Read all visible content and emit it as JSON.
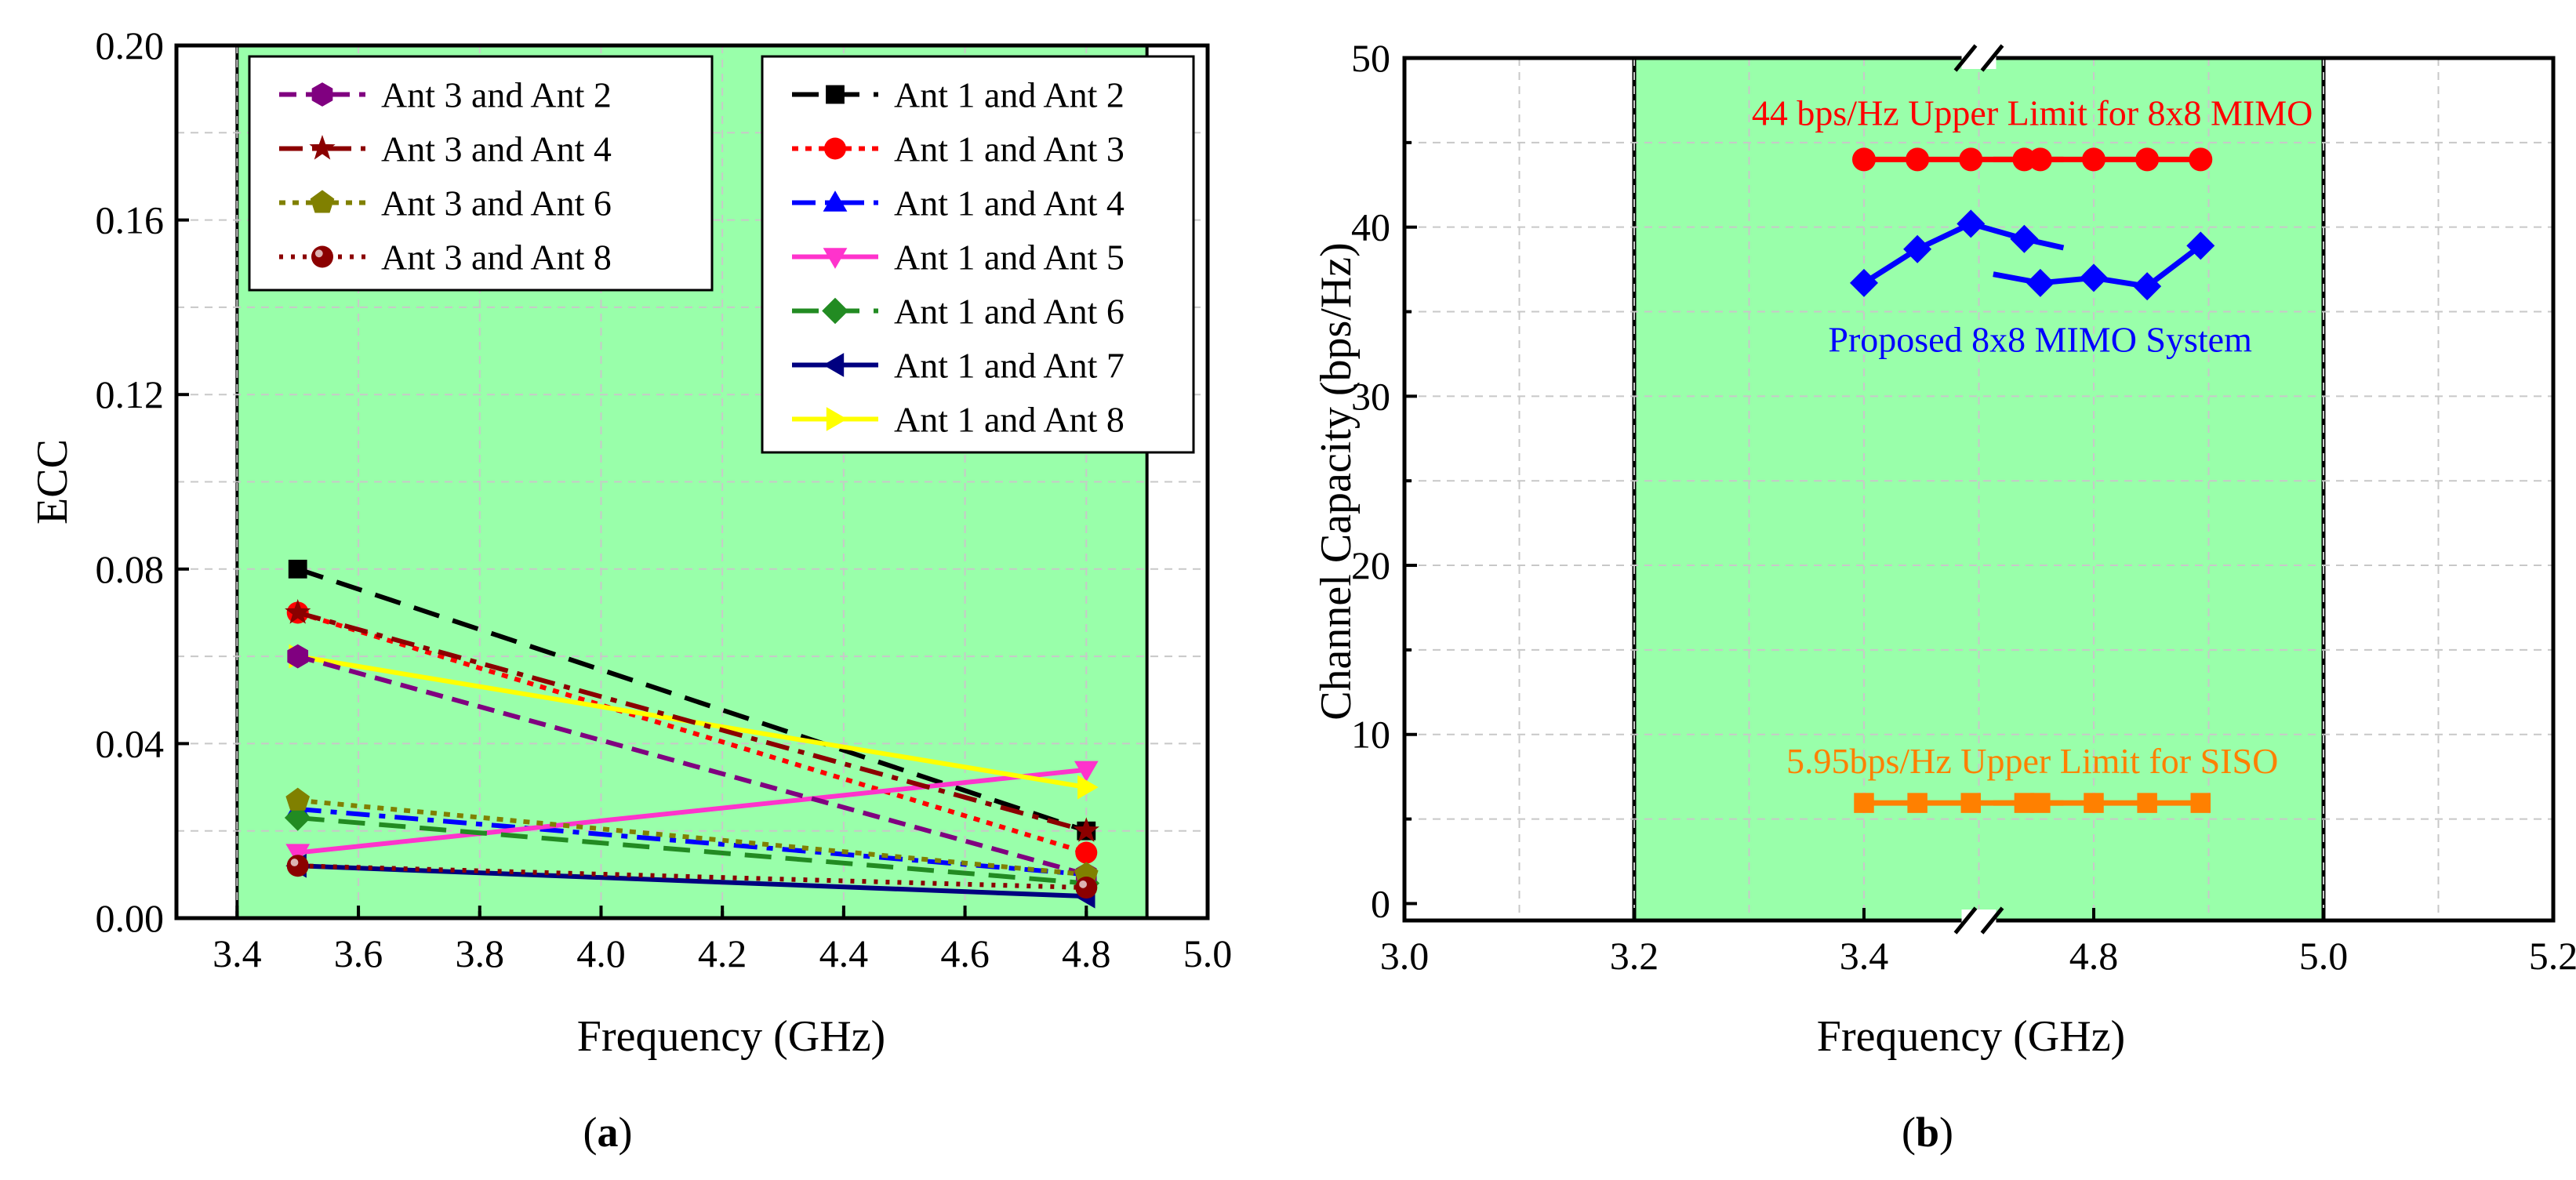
{
  "colors": {
    "band": "#99ffaa",
    "legend_bg": "#ffffff"
  },
  "chart_data": [
    {
      "type": "line",
      "caption": "(a)",
      "caption_letter": "a",
      "title": "",
      "xlabel": "Frequency (GHz)",
      "ylabel": "ECC",
      "xlim": [
        3.3,
        5.0
      ],
      "ylim": [
        0.0,
        0.2
      ],
      "x_ticks": [
        3.4,
        3.6,
        3.8,
        4.0,
        4.2,
        4.4,
        4.6,
        4.8,
        5.0
      ],
      "x_tick_labels": [
        "3.4",
        "3.6",
        "3.8",
        "4.0",
        "4.2",
        "4.4",
        "4.6",
        "4.8",
        "5.0"
      ],
      "y_ticks": [
        0.0,
        0.04,
        0.08,
        0.12,
        0.16,
        0.2
      ],
      "y_tick_labels": [
        "0.00",
        "0.04",
        "0.08",
        "0.12",
        "0.16",
        "0.20"
      ],
      "grid": true,
      "shaded_band": {
        "x_from": 3.4,
        "x_to": 4.9
      },
      "series": [
        {
          "name": "Ant 1 and Ant 2",
          "color": "#000000",
          "dash": "dash",
          "marker": "square",
          "x": [
            3.5,
            4.8
          ],
          "y": [
            0.08,
            0.02
          ]
        },
        {
          "name": "Ant 1 and Ant 3",
          "color": "#ff0000",
          "dash": "dot",
          "marker": "circle",
          "x": [
            3.5,
            4.8
          ],
          "y": [
            0.07,
            0.015
          ]
        },
        {
          "name": "Ant 1 and Ant 4",
          "color": "#0000ff",
          "dash": "dashdot",
          "marker": "triangle-up",
          "x": [
            3.5,
            4.8
          ],
          "y": [
            0.025,
            0.01
          ]
        },
        {
          "name": "Ant 1 and Ant 5",
          "color": "#ff33cc",
          "dash": "solid",
          "marker": "triangle-down",
          "x": [
            3.5,
            4.8
          ],
          "y": [
            0.015,
            0.034
          ]
        },
        {
          "name": "Ant 1 and Ant 6",
          "color": "#228b22",
          "dash": "dash",
          "marker": "diamond",
          "x": [
            3.5,
            4.8
          ],
          "y": [
            0.023,
            0.008
          ]
        },
        {
          "name": "Ant 1 and Ant 7",
          "color": "#000080",
          "dash": "solid",
          "marker": "triangle-left",
          "x": [
            3.5,
            4.8
          ],
          "y": [
            0.012,
            0.005
          ]
        },
        {
          "name": "Ant 1 and Ant 8",
          "color": "#ffff00",
          "dash": "solid",
          "marker": "triangle-right",
          "x": [
            3.5,
            4.8
          ],
          "y": [
            0.06,
            0.03
          ]
        },
        {
          "name": "Ant 3 and Ant 2",
          "color": "#800080",
          "dash": "shortdash",
          "marker": "hexagon",
          "x": [
            3.5,
            4.8
          ],
          "y": [
            0.06,
            0.01
          ]
        },
        {
          "name": "Ant 3 and Ant 4",
          "color": "#8b0000",
          "dash": "dashdot",
          "marker": "star",
          "x": [
            3.5,
            4.8
          ],
          "y": [
            0.07,
            0.02
          ]
        },
        {
          "name": "Ant 3 and Ant 6",
          "color": "#808000",
          "dash": "dot",
          "marker": "pentagon",
          "x": [
            3.5,
            4.8
          ],
          "y": [
            0.027,
            0.01
          ]
        },
        {
          "name": "Ant 3 and Ant 8",
          "color": "#8b0000",
          "dash": "shortdot",
          "marker": "sphere",
          "x": [
            3.5,
            4.8
          ],
          "y": [
            0.012,
            0.007
          ]
        }
      ],
      "legends": {
        "left": [
          "Ant 3 and Ant 2",
          "Ant 3 and Ant 4",
          "Ant 3 and Ant 6",
          "Ant 3 and Ant 8"
        ],
        "right": [
          "Ant 1 and Ant 2",
          "Ant 1 and Ant 3",
          "Ant 1 and Ant 4",
          "Ant 1 and Ant 5",
          "Ant 1 and Ant 6",
          "Ant 1 and Ant 7",
          "Ant 1 and Ant 8"
        ]
      }
    },
    {
      "type": "line",
      "caption": "(b)",
      "caption_letter": "b",
      "title": "",
      "xlabel": "Frequency (GHz)",
      "ylabel": "Channel Capacity (bps/Hz)",
      "xlim": [
        3.0,
        5.2
      ],
      "ylim": [
        -1,
        50
      ],
      "x_ticks": [
        3.0,
        3.2,
        3.4,
        4.8,
        5.0,
        5.2
      ],
      "x_tick_labels": [
        "3.0",
        "3.2",
        "3.4",
        "4.8",
        "5.0",
        "5.2"
      ],
      "y_ticks": [
        0,
        10,
        20,
        30,
        40,
        50
      ],
      "y_tick_labels": [
        "0",
        "10",
        "20",
        "30",
        "40",
        "50"
      ],
      "grid": true,
      "axis_break": true,
      "shaded_band": {
        "x_from": 3.2,
        "x_to": 5.0
      },
      "series": [
        {
          "name": "44 bps/Hz Upper Limit for 8x8 MIMO",
          "color": "#ff0000",
          "marker": "circle",
          "x": [
            3.4,
            3.45,
            3.5,
            3.55,
            4.75,
            4.8,
            4.85,
            4.9
          ],
          "y": [
            44,
            44,
            44,
            44,
            44,
            44,
            44,
            44
          ]
        },
        {
          "name": "Proposed 8x8 MIMO System",
          "color": "#0000ff",
          "marker": "diamond",
          "x": [
            3.4,
            3.45,
            3.5,
            3.55,
            4.75,
            4.8,
            4.85,
            4.9
          ],
          "y": [
            36.7,
            38.7,
            40.2,
            39.3,
            36.7,
            37.0,
            36.5,
            38.9
          ]
        },
        {
          "name": "5.95bps/Hz Upper Limit for SISO",
          "color": "#ff8000",
          "marker": "square",
          "x": [
            3.4,
            3.45,
            3.5,
            3.55,
            4.75,
            4.8,
            4.85,
            4.9
          ],
          "y": [
            5.95,
            5.95,
            5.95,
            5.95,
            5.95,
            5.95,
            5.95,
            5.95
          ]
        }
      ],
      "annotations": [
        {
          "text": "44 bps/Hz Upper Limit for 8x8 MIMO",
          "color": "#ff0000"
        },
        {
          "text": "Proposed 8x8 MIMO System",
          "color": "#0000ff"
        },
        {
          "text": "5.95bps/Hz Upper Limit for SISO",
          "color": "#ff8000"
        }
      ]
    }
  ]
}
